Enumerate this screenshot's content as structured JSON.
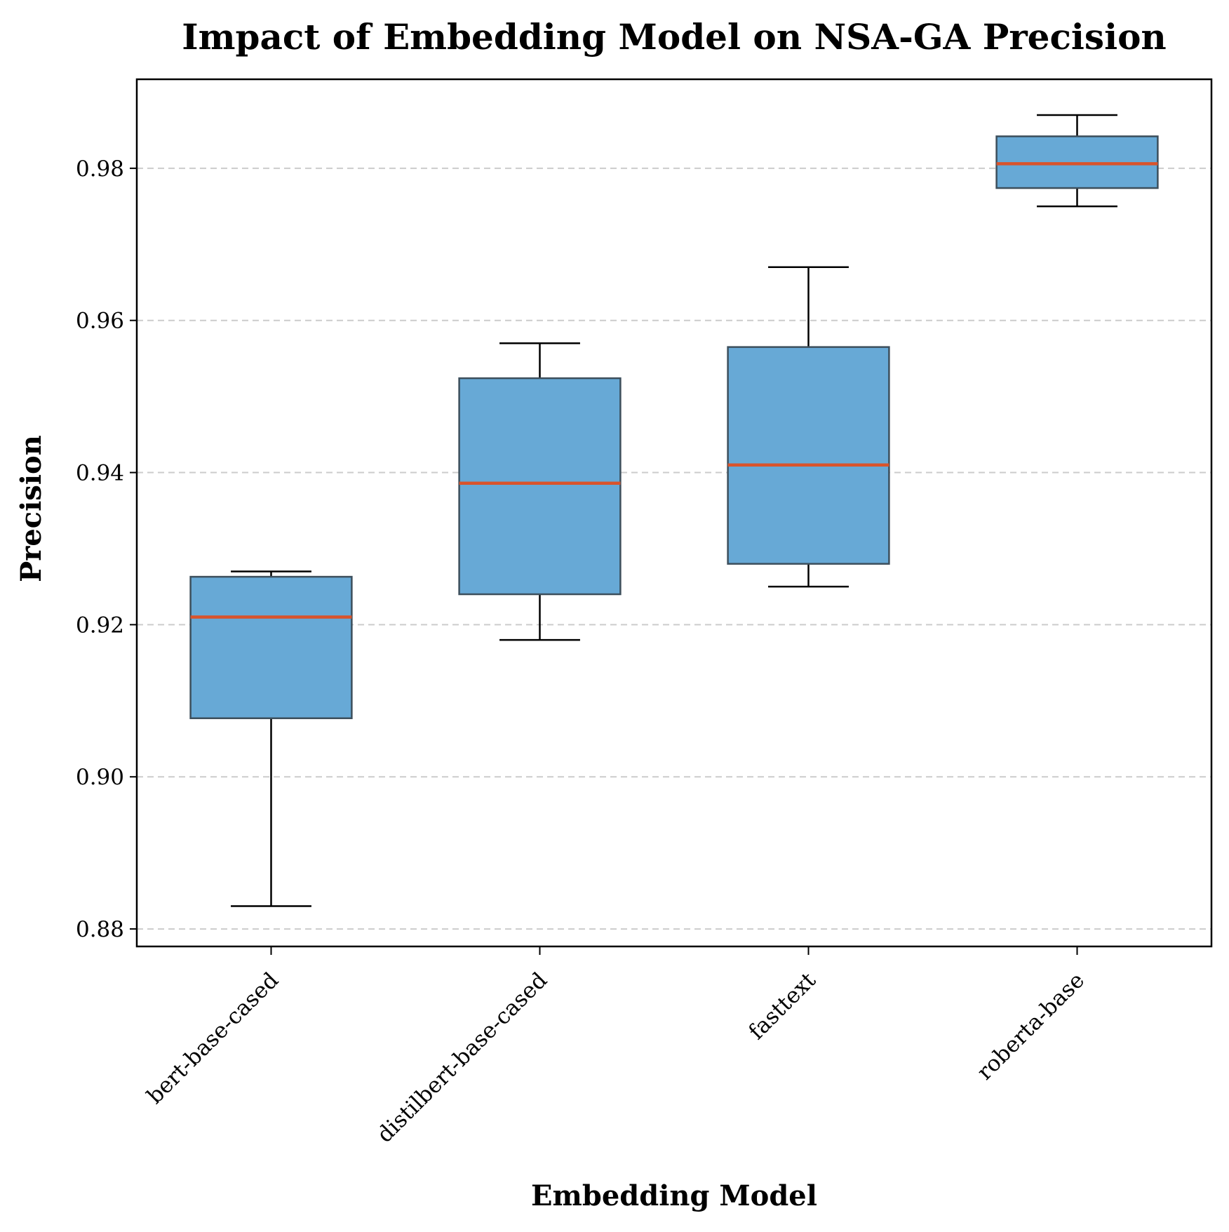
{
  "chart_data": {
    "type": "box",
    "title": "Impact of Embedding Model on NSA-GA Precision",
    "xlabel": "Embedding Model",
    "ylabel": "Precision",
    "ylim": [
      0.8777,
      0.9917
    ],
    "yticks": [
      "0.88",
      "0.90",
      "0.92",
      "0.94",
      "0.96",
      "0.98"
    ],
    "grid": "horizontal-dashed",
    "categories": [
      "bert-base-cased",
      "distilbert-base-cased",
      "fasttext",
      "roberta-base"
    ],
    "boxes": [
      {
        "category": "bert-base-cased",
        "whisker_low": 0.883,
        "q1": 0.9077,
        "median": 0.921,
        "q3": 0.9263,
        "whisker_high": 0.927
      },
      {
        "category": "distilbert-base-cased",
        "whisker_low": 0.918,
        "q1": 0.924,
        "median": 0.9386,
        "q3": 0.9524,
        "whisker_high": 0.957
      },
      {
        "category": "fasttext",
        "whisker_low": 0.925,
        "q1": 0.928,
        "median": 0.941,
        "q3": 0.9565,
        "whisker_high": 0.967
      },
      {
        "category": "roberta-base",
        "whisker_low": 0.975,
        "q1": 0.9774,
        "median": 0.9806,
        "q3": 0.9842,
        "whisker_high": 0.987
      }
    ],
    "colors": {
      "box_fill": "#67a9d6",
      "box_edge": "#3d4f5c",
      "median": "#d9532b",
      "whisker": "#000000",
      "grid": "#cccccc"
    }
  }
}
